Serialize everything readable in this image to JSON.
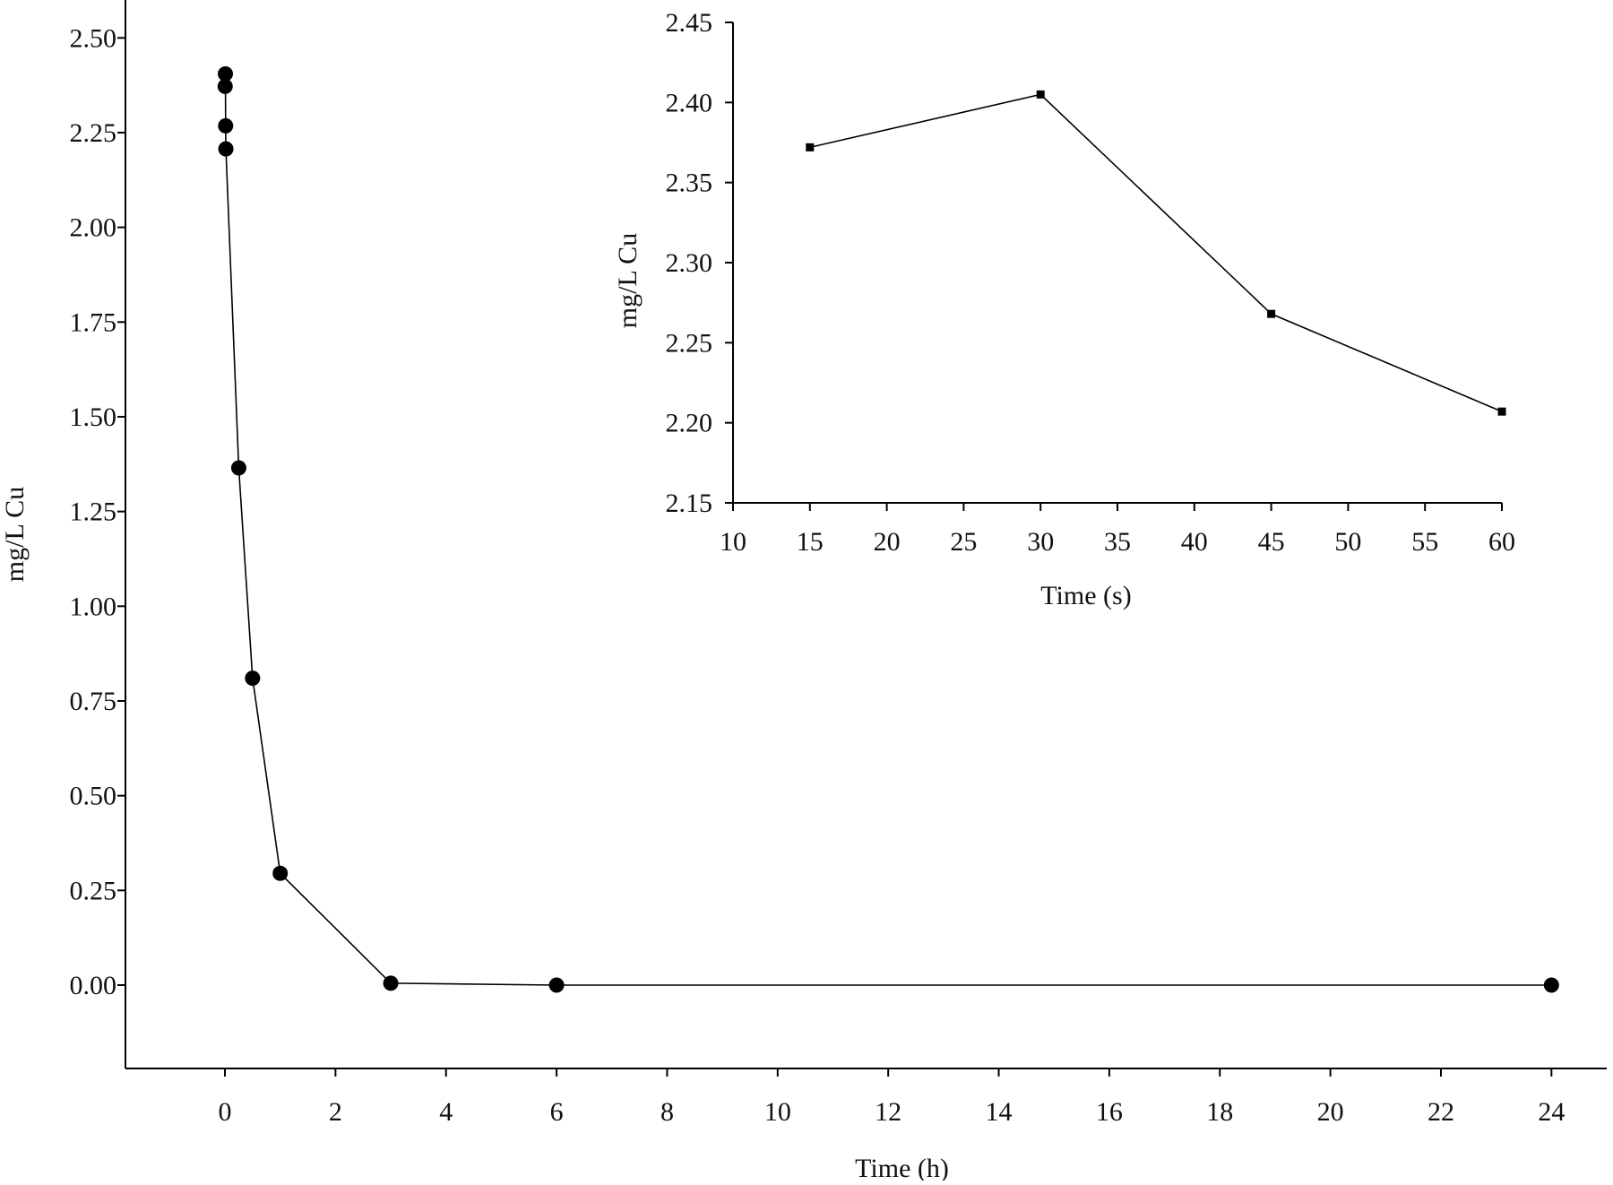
{
  "chart_data": [
    {
      "type": "line",
      "title": "",
      "xlabel": "Time (h)",
      "ylabel": "mg/L Cu",
      "xlim": [
        -1.8,
        25
      ],
      "ylim": [
        -0.22,
        2.6
      ],
      "xticks": [
        0,
        2,
        4,
        6,
        8,
        10,
        12,
        14,
        16,
        18,
        20,
        22,
        24
      ],
      "yticks": [
        0,
        0.25,
        0.5,
        0.75,
        1.0,
        1.25,
        1.5,
        1.75,
        2.0,
        2.25,
        2.5
      ],
      "ytick_decimals": 2,
      "grid": false,
      "legend": "none",
      "marker": "circle",
      "color": "#000000",
      "series": [
        {
          "x": [
            0.004,
            0.008,
            0.0125,
            0.0167,
            0.25,
            0.5,
            1,
            3,
            6,
            24
          ],
          "y": [
            2.372,
            2.405,
            2.268,
            2.207,
            1.365,
            0.81,
            0.295,
            0.005,
            0.0,
            0.0
          ]
        }
      ]
    },
    {
      "type": "line",
      "title": "",
      "xlabel": "Time (s)",
      "ylabel": "mg/L Cu",
      "xlim": [
        10,
        60
      ],
      "ylim": [
        2.15,
        2.45
      ],
      "xticks": [
        10,
        15,
        20,
        25,
        30,
        35,
        40,
        45,
        50,
        55,
        60
      ],
      "yticks": [
        2.15,
        2.2,
        2.25,
        2.3,
        2.35,
        2.4,
        2.45
      ],
      "ytick_decimals": 2,
      "grid": false,
      "legend": "none",
      "marker": "square",
      "color": "#000000",
      "series": [
        {
          "x": [
            15,
            30,
            45,
            60
          ],
          "y": [
            2.372,
            2.405,
            2.268,
            2.207
          ]
        }
      ]
    }
  ]
}
